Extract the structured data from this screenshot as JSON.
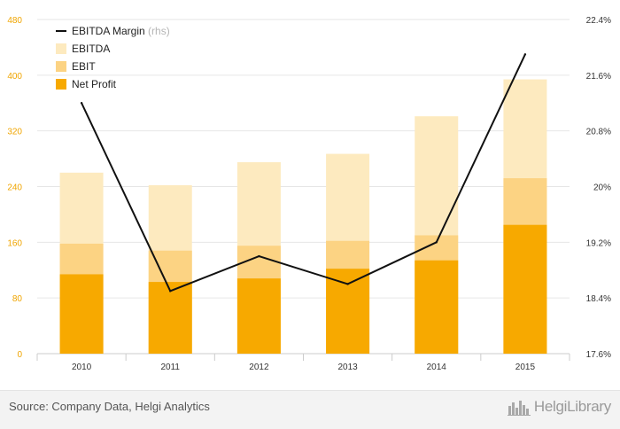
{
  "chart_data": {
    "type": "bar",
    "stacked": false,
    "categories": [
      "2010",
      "2011",
      "2012",
      "2013",
      "2014",
      "2015"
    ],
    "series": [
      {
        "name": "EBITDA",
        "kind": "bar",
        "axis": "left",
        "color": "#fdeabf",
        "values": [
          260,
          242,
          275,
          287,
          341,
          394
        ]
      },
      {
        "name": "EBIT",
        "kind": "bar",
        "axis": "left",
        "color": "#fcd383",
        "values": [
          158,
          148,
          155,
          162,
          170,
          252
        ]
      },
      {
        "name": "Net Profit",
        "kind": "bar",
        "axis": "left",
        "color": "#f7a900",
        "values": [
          114,
          103,
          108,
          122,
          134,
          185
        ]
      },
      {
        "name": "EBITDA Margin",
        "name_suffix": "(rhs)",
        "kind": "line",
        "axis": "right",
        "color": "#111111",
        "values": [
          21.2,
          18.5,
          19.0,
          18.6,
          19.2,
          21.9
        ]
      }
    ],
    "left_axis": {
      "min": 0,
      "max": 480,
      "ticks": [
        "0",
        "80",
        "160",
        "240",
        "320",
        "400",
        "480"
      ],
      "tick_color": "#f0a500"
    },
    "right_axis": {
      "min": 17.6,
      "max": 22.4,
      "ticks": [
        "17.6%",
        "18.4%",
        "19.2%",
        "20%",
        "20.8%",
        "21.6%",
        "22.4%"
      ]
    },
    "grid": true,
    "legend_position": "top-left"
  },
  "footer": {
    "source": "Source: Company Data, Helgi Analytics",
    "brand": "HelgiLibrary"
  }
}
